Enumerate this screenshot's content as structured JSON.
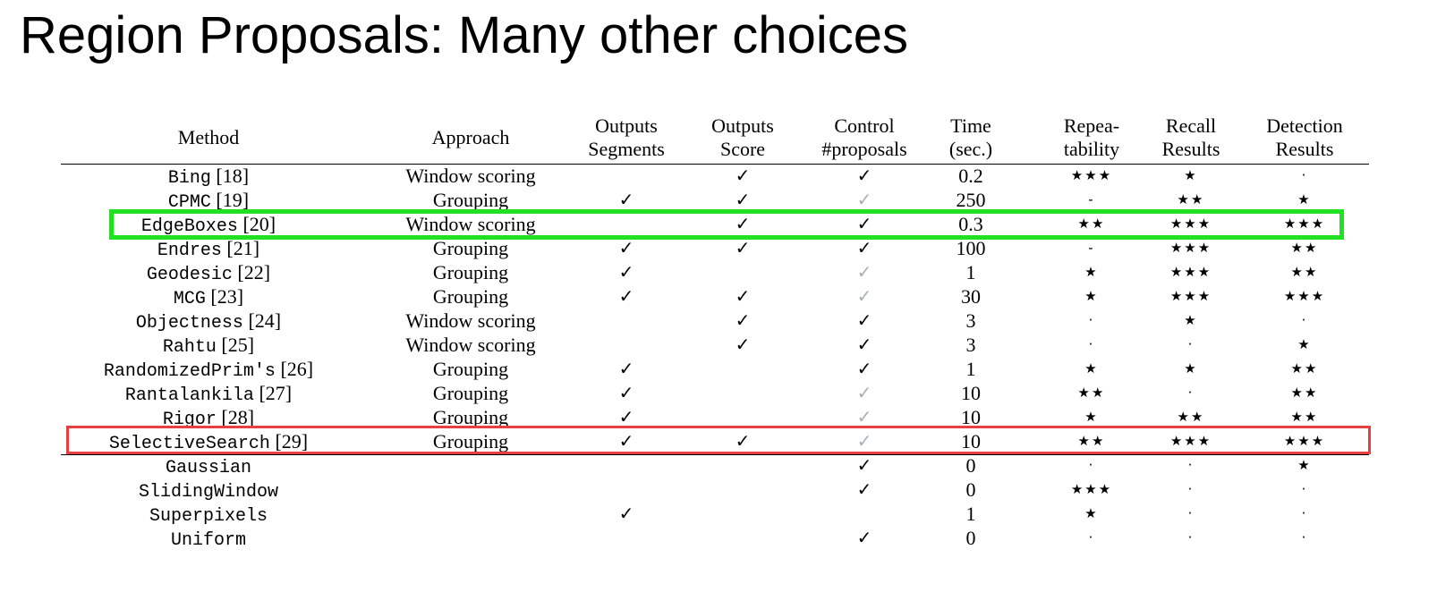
{
  "title": "Region Proposals: Many other choices",
  "colors": {
    "green_box": "#22e022",
    "red_box": "#e84040",
    "light_check": "#a8b0b8"
  },
  "icons": {
    "check": "check-mark-icon",
    "star": "star-icon",
    "dot": "dot-icon"
  },
  "columns": [
    [
      "Method"
    ],
    [
      "Approach"
    ],
    [
      "Outputs",
      "Segments"
    ],
    [
      "Outputs",
      "Score"
    ],
    [
      "Control",
      "#proposals"
    ],
    [
      "Time",
      "(sec.)"
    ],
    [
      "Repea-",
      "tability"
    ],
    [
      "Recall",
      "Results"
    ],
    [
      "Detection",
      "Results"
    ]
  ],
  "rows": [
    {
      "name": "Bing",
      "ref": "[18]",
      "approach": "Window scoring",
      "segments": "",
      "score": "✓",
      "control": "✓",
      "control_light": false,
      "time": "0.2",
      "repeat": "★★★",
      "recall": "★",
      "detection": "·"
    },
    {
      "name": "CPMC",
      "ref": "[19]",
      "approach": "Grouping",
      "segments": "✓",
      "score": "✓",
      "control": "✓",
      "control_light": true,
      "time": "250",
      "repeat": "-",
      "recall": "★★",
      "detection": "★"
    },
    {
      "name": "EdgeBoxes",
      "ref": "[20]",
      "approach": "Window scoring",
      "segments": "",
      "score": "✓",
      "control": "✓",
      "control_light": false,
      "time": "0.3",
      "repeat": "★★",
      "recall": "★★★",
      "detection": "★★★"
    },
    {
      "name": "Endres",
      "ref": "[21]",
      "approach": "Grouping",
      "segments": "✓",
      "score": "✓",
      "control": "✓",
      "control_light": false,
      "time": "100",
      "repeat": "-",
      "recall": "★★★",
      "detection": "★★"
    },
    {
      "name": "Geodesic",
      "ref": "[22]",
      "approach": "Grouping",
      "segments": "✓",
      "score": "",
      "control": "✓",
      "control_light": true,
      "time": "1",
      "repeat": "★",
      "recall": "★★★",
      "detection": "★★"
    },
    {
      "name": "MCG",
      "ref": "[23]",
      "approach": "Grouping",
      "segments": "✓",
      "score": "✓",
      "control": "✓",
      "control_light": true,
      "time": "30",
      "repeat": "★",
      "recall": "★★★",
      "detection": "★★★"
    },
    {
      "name": "Objectness",
      "ref": "[24]",
      "approach": "Window scoring",
      "segments": "",
      "score": "✓",
      "control": "✓",
      "control_light": false,
      "time": "3",
      "repeat": "·",
      "recall": "★",
      "detection": "·"
    },
    {
      "name": "Rahtu",
      "ref": "[25]",
      "approach": "Window scoring",
      "segments": "",
      "score": "✓",
      "control": "✓",
      "control_light": false,
      "time": "3",
      "repeat": "·",
      "recall": "·",
      "detection": "★"
    },
    {
      "name": "RandomizedPrim's",
      "ref": "[26]",
      "approach": "Grouping",
      "segments": "✓",
      "score": "",
      "control": "✓",
      "control_light": false,
      "time": "1",
      "repeat": "★",
      "recall": "★",
      "detection": "★★"
    },
    {
      "name": "Rantalankila",
      "ref": "[27]",
      "approach": "Grouping",
      "segments": "✓",
      "score": "",
      "control": "✓",
      "control_light": true,
      "time": "10",
      "repeat": "★★",
      "recall": "·",
      "detection": "★★"
    },
    {
      "name": "Rigor",
      "ref": "[28]",
      "approach": "Grouping",
      "segments": "✓",
      "score": "",
      "control": "✓",
      "control_light": true,
      "time": "10",
      "repeat": "★",
      "recall": "★★",
      "detection": "★★"
    },
    {
      "name": "SelectiveSearch",
      "ref": "[29]",
      "approach": "Grouping",
      "segments": "✓",
      "score": "✓",
      "control": "✓",
      "control_light": true,
      "time": "10",
      "repeat": "★★",
      "recall": "★★★",
      "detection": "★★★"
    },
    {
      "name": "Gaussian",
      "ref": "",
      "approach": "",
      "segments": "",
      "score": "",
      "control": "✓",
      "control_light": false,
      "time": "0",
      "repeat": "·",
      "recall": "·",
      "detection": "★"
    },
    {
      "name": "SlidingWindow",
      "ref": "",
      "approach": "",
      "segments": "",
      "score": "",
      "control": "✓",
      "control_light": false,
      "time": "0",
      "repeat": "★★★",
      "recall": "·",
      "detection": "·"
    },
    {
      "name": "Superpixels",
      "ref": "",
      "approach": "",
      "segments": "✓",
      "score": "",
      "control": "",
      "control_light": false,
      "time": "1",
      "repeat": "★",
      "recall": "·",
      "detection": "·"
    },
    {
      "name": "Uniform",
      "ref": "",
      "approach": "",
      "segments": "",
      "score": "",
      "control": "✓",
      "control_light": false,
      "time": "0",
      "repeat": "·",
      "recall": "·",
      "detection": "·"
    }
  ]
}
